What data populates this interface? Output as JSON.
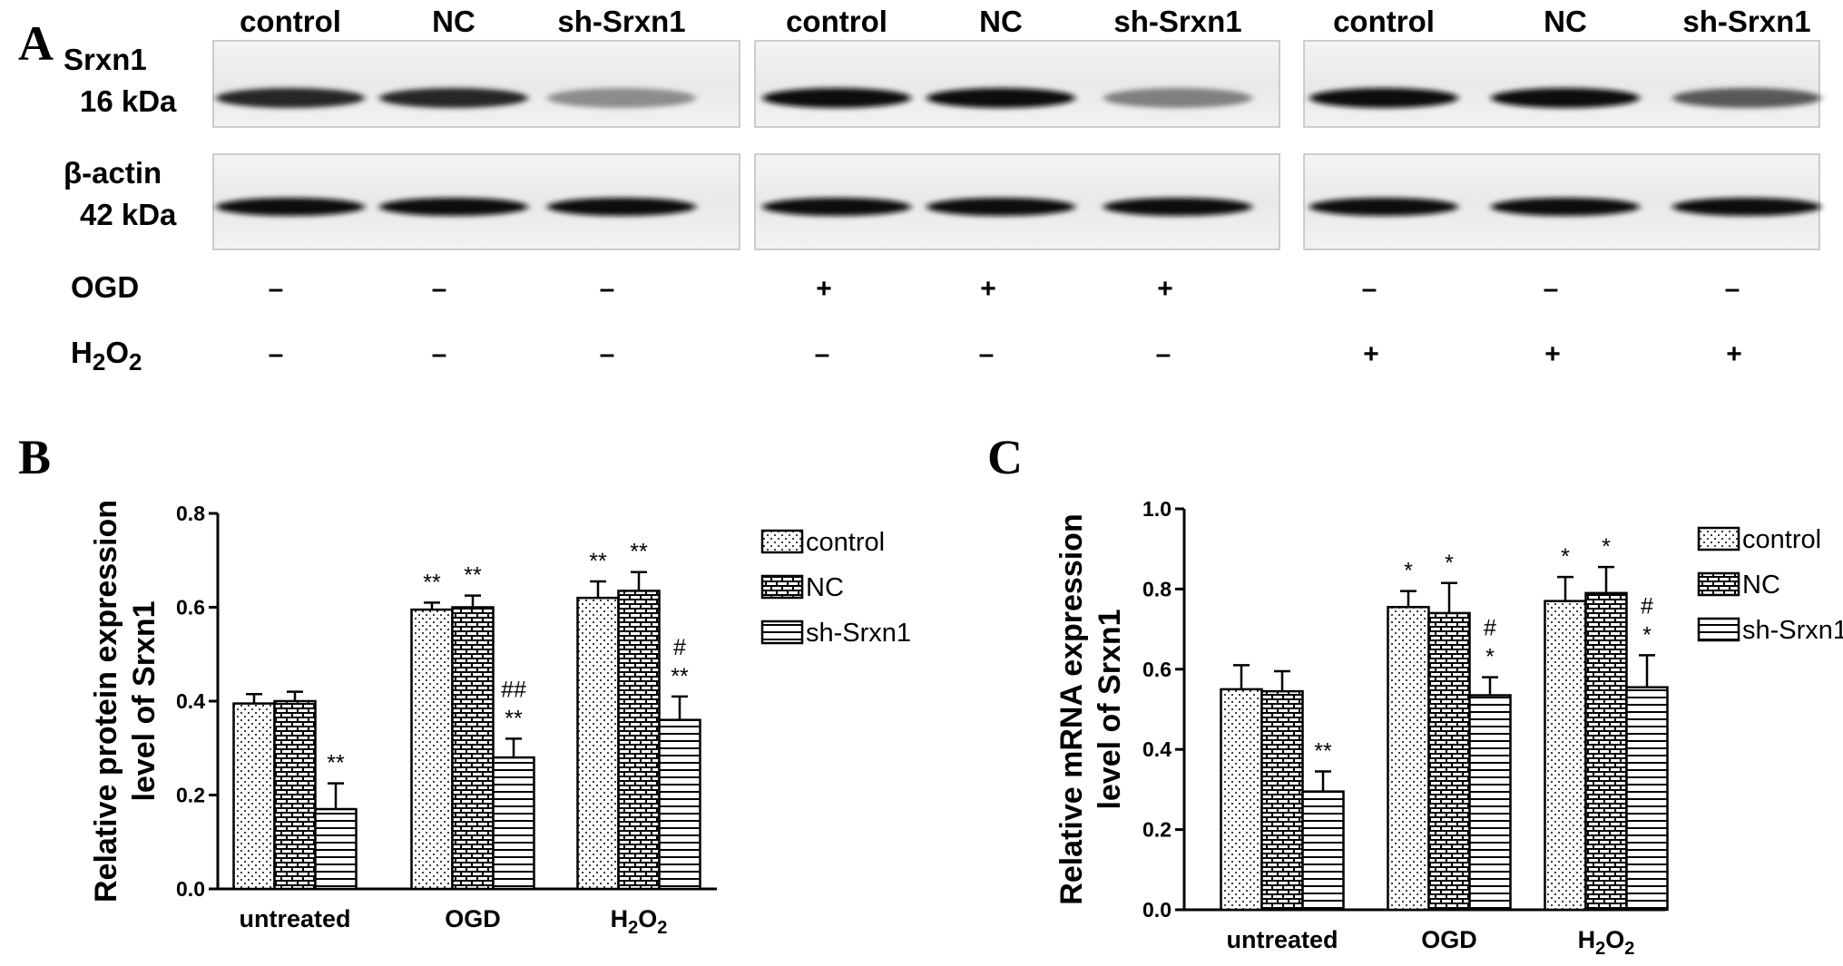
{
  "panel_labels": [
    "A",
    "B",
    "C"
  ],
  "blot": {
    "lane_labels": [
      "control",
      "NC",
      "sh-Srxn1",
      "control",
      "NC",
      "sh-Srxn1",
      "control",
      "NC",
      "sh-Srxn1"
    ],
    "rows": [
      {
        "name": "Srxn1",
        "size": "16 kDa",
        "band_strength": [
          0.85,
          0.85,
          0.45,
          0.95,
          0.95,
          0.5,
          0.95,
          0.95,
          0.65
        ]
      },
      {
        "name": "β-actin",
        "size": "42 kDa",
        "band_strength": [
          0.95,
          0.95,
          0.95,
          0.95,
          0.95,
          0.95,
          0.95,
          0.95,
          0.95
        ]
      }
    ],
    "conditions": [
      {
        "label": "OGD",
        "signs": [
          "–",
          "–",
          "–",
          "+",
          "+",
          "+",
          "–",
          "–",
          "–"
        ]
      },
      {
        "label": "H₂O₂",
        "signs": [
          "–",
          "–",
          "–",
          "–",
          "–",
          "–",
          "+",
          "+",
          "+"
        ]
      }
    ]
  },
  "chart_data": [
    {
      "type": "bar",
      "panel": "B",
      "ylabel_line1": "Relative protein expression",
      "ylabel_line2": "level of Srxn1",
      "categories": [
        "untreated",
        "OGD",
        "H₂O₂"
      ],
      "ylim": [
        0,
        0.8
      ],
      "yticks": [
        "0.0",
        "0.2",
        "0.4",
        "0.6",
        "0.8"
      ],
      "legend_position": "right",
      "series": [
        {
          "name": "control",
          "pattern": "dots",
          "values": [
            0.395,
            0.595,
            0.62
          ],
          "errors": [
            0.02,
            0.015,
            0.035
          ],
          "annotations": [
            "",
            "**",
            "**"
          ]
        },
        {
          "name": "NC",
          "pattern": "brick",
          "values": [
            0.4,
            0.6,
            0.635
          ],
          "errors": [
            0.02,
            0.025,
            0.04
          ],
          "annotations": [
            "",
            "**",
            "**"
          ]
        },
        {
          "name": "sh-Srxn1",
          "pattern": "hlines",
          "values": [
            0.17,
            0.28,
            0.36
          ],
          "errors": [
            0.055,
            0.04,
            0.05
          ],
          "annotations": [
            "**",
            "##\n**",
            "#\n**"
          ]
        }
      ]
    },
    {
      "type": "bar",
      "panel": "C",
      "ylabel_line1": "Relative mRNA expression",
      "ylabel_line2": "level of Srxn1",
      "categories": [
        "untreated",
        "OGD",
        "H₂O₂"
      ],
      "ylim": [
        0,
        1.0
      ],
      "yticks": [
        "0.0",
        "0.2",
        "0.4",
        "0.6",
        "0.8",
        "1.0"
      ],
      "legend_position": "right",
      "series": [
        {
          "name": "control",
          "pattern": "dots",
          "values": [
            0.55,
            0.755,
            0.77
          ],
          "errors": [
            0.06,
            0.04,
            0.06
          ],
          "annotations": [
            "",
            "*",
            "*"
          ]
        },
        {
          "name": "NC",
          "pattern": "brick",
          "values": [
            0.545,
            0.74,
            0.79
          ],
          "errors": [
            0.05,
            0.075,
            0.065
          ],
          "annotations": [
            "",
            "*",
            "*"
          ]
        },
        {
          "name": "sh-Srxn1",
          "pattern": "hlines",
          "values": [
            0.295,
            0.535,
            0.555
          ],
          "errors": [
            0.05,
            0.045,
            0.08
          ],
          "annotations": [
            "**",
            "#\n*",
            "#\n*"
          ]
        }
      ]
    }
  ]
}
